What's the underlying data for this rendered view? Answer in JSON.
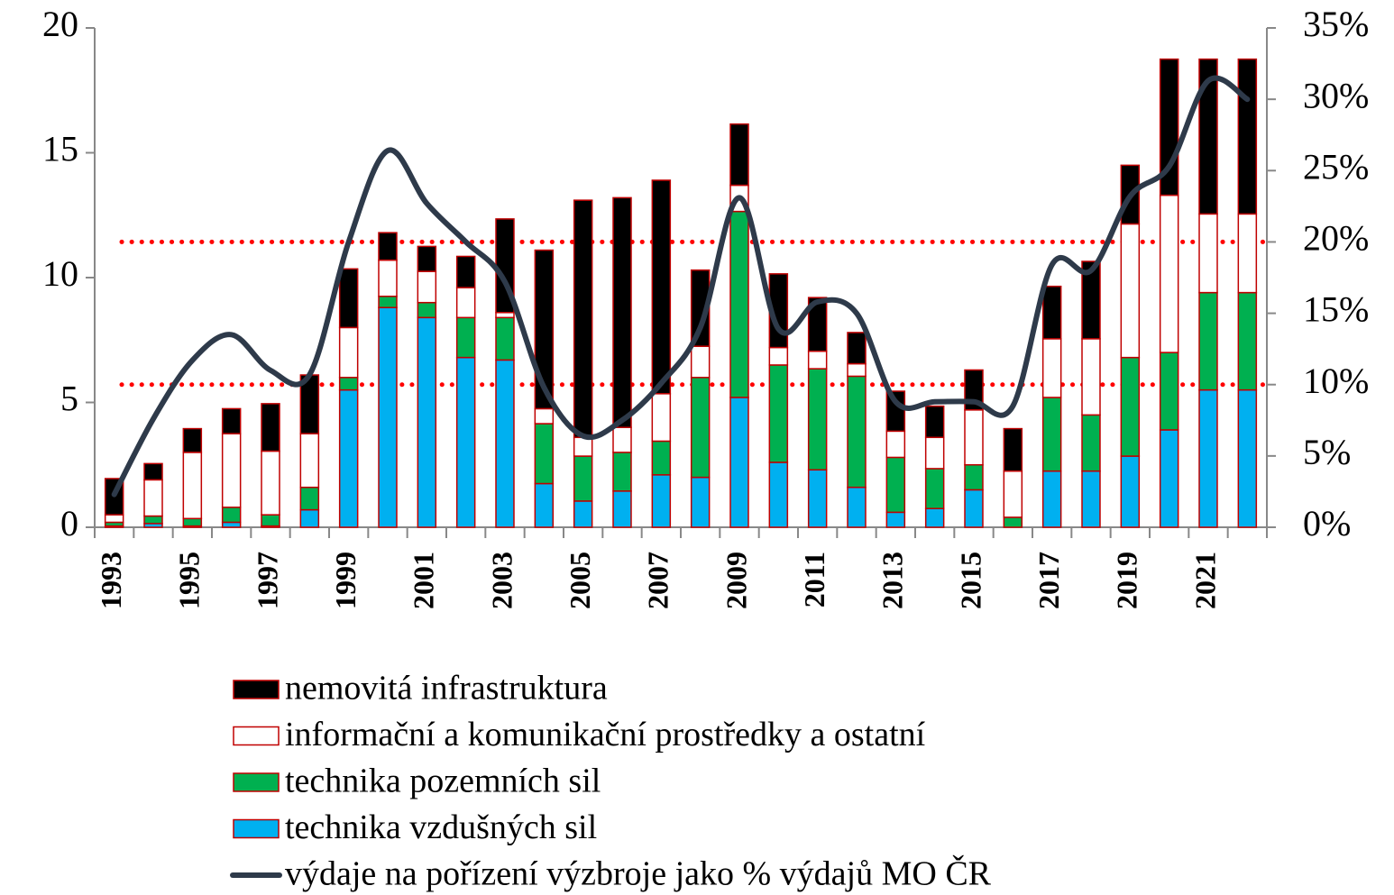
{
  "chart_data": {
    "type": "bar",
    "stacked": true,
    "categories": [
      "1993",
      null,
      "1995",
      null,
      "1997",
      null,
      "1999",
      null,
      "2001",
      null,
      "2003",
      null,
      "2005",
      null,
      "2007",
      null,
      "2009",
      null,
      "2011",
      null,
      "2013",
      null,
      "2015",
      null,
      "2017",
      null,
      "2019",
      null,
      "2021",
      null
    ],
    "series": [
      {
        "name": "nemovitá infrastruktura",
        "color": "#000000",
        "values": [
          1.45,
          0.65,
          0.95,
          1.0,
          1.9,
          2.35,
          2.35,
          1.1,
          1.0,
          1.25,
          3.75,
          6.35,
          9.5,
          9.2,
          8.55,
          3.05,
          2.45,
          2.95,
          2.15,
          1.25,
          1.6,
          1.25,
          1.6,
          1.7,
          2.1,
          3.1,
          2.35,
          5.45,
          6.2,
          6.2
        ]
      },
      {
        "name": "informační a komunikační prostředky a ostatní",
        "color": "#ffffff",
        "values": [
          0.3,
          1.45,
          2.65,
          2.95,
          2.55,
          2.15,
          2.0,
          1.45,
          1.25,
          1.2,
          0.2,
          0.6,
          0.75,
          1.0,
          1.9,
          1.25,
          1.05,
          0.7,
          0.7,
          0.5,
          1.05,
          1.25,
          2.2,
          1.85,
          2.35,
          3.05,
          5.35,
          6.3,
          3.15,
          3.15
        ]
      },
      {
        "name": "technika pozemních sil",
        "color": "#00b050",
        "values": [
          0.15,
          0.3,
          0.3,
          0.6,
          0.45,
          0.9,
          0.5,
          0.45,
          0.6,
          1.6,
          1.7,
          2.4,
          1.8,
          1.55,
          1.35,
          4.0,
          7.45,
          3.9,
          4.05,
          4.45,
          2.2,
          1.6,
          1.0,
          0.4,
          2.95,
          2.25,
          3.95,
          3.1,
          3.9,
          3.9
        ]
      },
      {
        "name": "technika vzdušných sil",
        "color": "#00b0f0",
        "values": [
          0.05,
          0.15,
          0.05,
          0.2,
          0.05,
          0.7,
          5.5,
          8.8,
          8.4,
          6.8,
          6.7,
          1.75,
          1.05,
          1.45,
          2.1,
          2.0,
          5.2,
          2.6,
          2.3,
          1.6,
          0.6,
          0.75,
          1.5,
          0,
          2.25,
          2.25,
          2.85,
          3.9,
          5.5,
          5.5
        ]
      },
      {
        "name": "výdaje na pořízení výzbroje jako % výdajů MO ČR",
        "color": "#2e3a4a",
        "type": "line",
        "axis": "y2",
        "values": [
          2.3,
          7.6,
          11.7,
          13.5,
          11.0,
          10.7,
          20.0,
          26.4,
          22.7,
          20.0,
          17.2,
          9.8,
          6.4,
          7.5,
          10.1,
          14.0,
          23.1,
          13.9,
          15.8,
          15.0,
          8.8,
          8.8,
          8.8,
          8.5,
          18.4,
          18.0,
          23.2,
          25.3,
          31.3,
          30.0
        ]
      }
    ],
    "bar_edge_color": "#c00000",
    "ylim": [
      0,
      20
    ],
    "yticks": [
      0,
      5,
      10,
      15,
      20
    ],
    "y2lim": [
      0,
      35
    ],
    "y2ticks": [
      {
        "value": 0,
        "label": "0%"
      },
      {
        "value": 5,
        "label": "5%"
      },
      {
        "value": 10,
        "label": "10%"
      },
      {
        "value": 15,
        "label": "15%"
      },
      {
        "value": 20,
        "label": "20%"
      },
      {
        "value": 25,
        "label": "25%"
      },
      {
        "value": 30,
        "label": "30%"
      },
      {
        "value": 35,
        "label": "35%"
      }
    ],
    "reference_lines": [
      {
        "value": 20,
        "axis": "y2",
        "color": "#ff0000"
      },
      {
        "value": 10,
        "axis": "y2",
        "color": "#ff0000"
      }
    ],
    "grid": false,
    "legend": "bottom"
  }
}
